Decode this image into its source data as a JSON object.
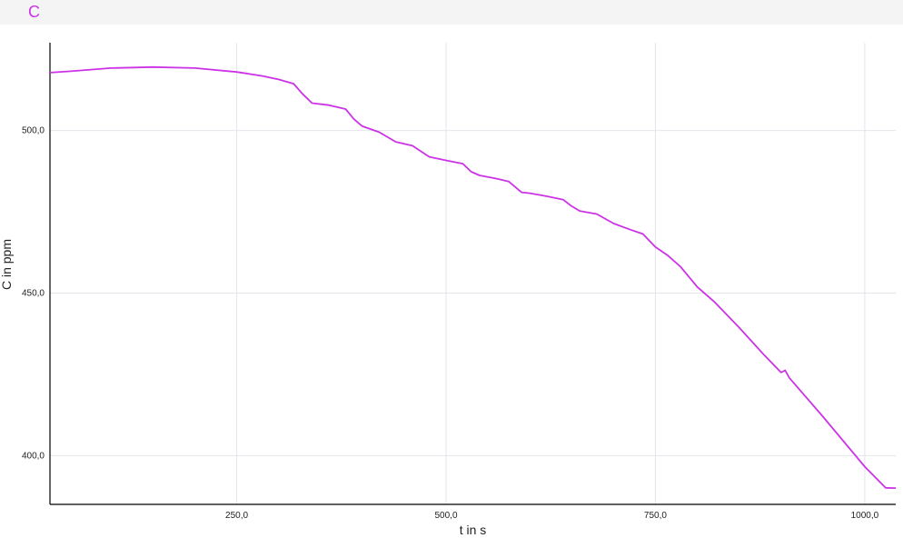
{
  "header": {
    "series_tag": "C"
  },
  "chart_data": {
    "type": "line",
    "xlabel": "t in s",
    "ylabel": "C in ppm",
    "xlim": [
      27,
      1037
    ],
    "ylim": [
      385,
      527
    ],
    "x_ticks": [
      {
        "value": 250,
        "label": "250,0"
      },
      {
        "value": 500,
        "label": "500,0"
      },
      {
        "value": 750,
        "label": "750,0"
      },
      {
        "value": 1000,
        "label": "1000,0"
      }
    ],
    "y_ticks": [
      {
        "value": 400,
        "label": "400,0"
      },
      {
        "value": 450,
        "label": "450,0"
      },
      {
        "value": 500,
        "label": "500,0"
      }
    ],
    "grid": true,
    "color": "#cc33e6",
    "series": [
      {
        "x": [
          27,
          50,
          100,
          150,
          200,
          250,
          280,
          300,
          318,
          328,
          340,
          360,
          380,
          390,
          400,
          420,
          440,
          460,
          470,
          480,
          500,
          520,
          530,
          540,
          560,
          575,
          590,
          600,
          620,
          640,
          650,
          660,
          680,
          700,
          720,
          735,
          750,
          765,
          780,
          800,
          820,
          850,
          880,
          900,
          905,
          910,
          950,
          1000,
          1025,
          1037
        ],
        "y": [
          517.8,
          518.2,
          519.2,
          519.5,
          519.2,
          518.0,
          516.8,
          515.7,
          514.4,
          511.4,
          508.4,
          507.8,
          506.6,
          503.5,
          501.3,
          499.5,
          496.5,
          495.3,
          493.6,
          491.9,
          490.8,
          489.8,
          487.3,
          486.2,
          485.2,
          484.3,
          481.0,
          480.7,
          479.8,
          478.7,
          476.7,
          475.2,
          474.3,
          471.4,
          469.5,
          468.2,
          464.2,
          461.5,
          458.1,
          451.9,
          447.4,
          439.4,
          430.9,
          425.6,
          426.2,
          423.9,
          412.0,
          396.6,
          390.1,
          390.0
        ]
      }
    ]
  }
}
